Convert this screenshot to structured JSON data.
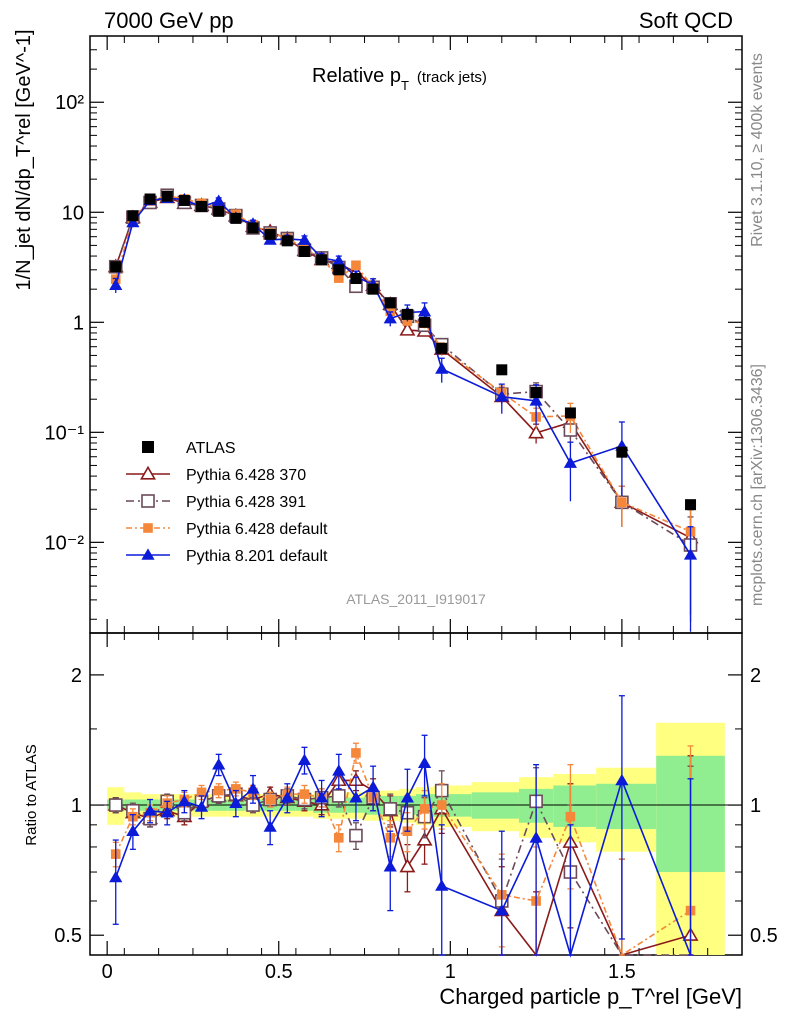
{
  "header": {
    "left": "7000 GeV pp",
    "right": "Soft QCD"
  },
  "side_labels": {
    "rivet": "Rivet 3.1.10, ≥ 400k events",
    "mcplots": "mcplots.cern.ch [arXiv:1306.3436]"
  },
  "main_panel": {
    "title_main": "Relative p",
    "title_sub": "T",
    "title_paren": "(track jets)",
    "analysis_id": "ATLAS_2011_I919017",
    "ylabel": "1/N_jet dN/dp_T^rel [GeV^-1]",
    "y_ticks": [
      "10⁻²",
      "10⁻¹",
      "1",
      "10",
      "10²"
    ]
  },
  "ratio_panel": {
    "ylabel": "Ratio to ATLAS",
    "y_ticks": [
      "0.5",
      "1",
      "2"
    ]
  },
  "x_axis": {
    "label": "Charged particle p_T^rel [GeV]",
    "ticks": [
      "0",
      "0.5",
      "1",
      "1.5"
    ]
  },
  "legend": [
    {
      "label": "ATLAS"
    },
    {
      "label": "Pythia 6.428 370"
    },
    {
      "label": "Pythia 6.428 391"
    },
    {
      "label": "Pythia 6.428 default"
    },
    {
      "label": "Pythia 8.201 default"
    }
  ],
  "chart_data": {
    "type": "scatter",
    "x": [
      0.025,
      0.075,
      0.125,
      0.175,
      0.225,
      0.275,
      0.325,
      0.375,
      0.425,
      0.475,
      0.525,
      0.575,
      0.625,
      0.675,
      0.725,
      0.775,
      0.825,
      0.875,
      0.925,
      0.975,
      1.15,
      1.25,
      1.35,
      1.5,
      1.7
    ],
    "xlim": [
      -0.05,
      1.85
    ],
    "ylim_main": [
      0.0015,
      400
    ],
    "y_scale_main": "log",
    "ylim_ratio": [
      0.45,
      2.5
    ],
    "y_scale_ratio": "log",
    "series": [
      {
        "name": "ATLAS",
        "color": "#000000",
        "marker": "filled-square",
        "values": [
          3.2,
          9.3,
          13.2,
          14.0,
          12.8,
          11.3,
          10.2,
          8.8,
          7.2,
          6.3,
          5.5,
          4.4,
          3.7,
          3.0,
          2.5,
          2.0,
          1.5,
          1.18,
          1.0,
          0.58,
          0.37,
          0.23,
          0.15,
          0.066,
          0.022
        ],
        "band_stat": [
          0.03,
          0.03,
          0.03,
          0.03,
          0.03,
          0.03,
          0.03,
          0.03,
          0.03,
          0.03,
          0.03,
          0.03,
          0.04,
          0.04,
          0.04,
          0.05,
          0.05,
          0.05,
          0.06,
          0.06,
          0.07,
          0.09,
          0.11,
          0.12,
          0.3
        ],
        "band_total": [
          0.1,
          0.07,
          0.06,
          0.06,
          0.06,
          0.06,
          0.06,
          0.06,
          0.06,
          0.06,
          0.06,
          0.06,
          0.07,
          0.07,
          0.07,
          0.08,
          0.08,
          0.09,
          0.1,
          0.11,
          0.13,
          0.16,
          0.18,
          0.22,
          0.55
        ]
      },
      {
        "name": "Pythia 6.428 370",
        "color": "#8b1a1a",
        "marker": "open-triangle",
        "dash": "",
        "ratio": [
          1.0,
          0.96,
          0.93,
          0.97,
          0.94,
          1.02,
          1.05,
          1.05,
          1.03,
          1.06,
          1.04,
          1.02,
          1.0,
          1.14,
          1.14,
          1.08,
          0.97,
          0.72,
          0.83,
          0.98,
          0.57,
          0.43,
          0.82,
          0.35,
          0.5
        ],
        "err": [
          0.04,
          0.04,
          0.04,
          0.04,
          0.04,
          0.04,
          0.04,
          0.04,
          0.04,
          0.04,
          0.04,
          0.05,
          0.05,
          0.06,
          0.06,
          0.07,
          0.08,
          0.09,
          0.1,
          0.12,
          0.15,
          0.2,
          0.3,
          0.4,
          0.8
        ]
      },
      {
        "name": "Pythia 6.428 391",
        "color": "#6b4a5a",
        "marker": "open-square",
        "dash": "8,4,2,4",
        "ratio": [
          1.0,
          0.97,
          0.93,
          1.02,
          0.96,
          1.02,
          1.05,
          1.06,
          1.0,
          1.03,
          1.05,
          1.03,
          1.04,
          1.05,
          0.85,
          1.04,
          0.98,
          0.96,
          0.94,
          1.08,
          0.6,
          1.02,
          0.7,
          0.35,
          0.43
        ],
        "err": [
          0.04,
          0.04,
          0.04,
          0.04,
          0.04,
          0.04,
          0.04,
          0.04,
          0.04,
          0.04,
          0.04,
          0.05,
          0.05,
          0.06,
          0.06,
          0.07,
          0.08,
          0.09,
          0.1,
          0.12,
          0.15,
          0.2,
          0.3,
          0.4,
          0.8
        ]
      },
      {
        "name": "Pythia 6.428 default",
        "color": "#f5873a",
        "marker": "filled-small-square",
        "dash": "6,3,2,3",
        "ratio": [
          0.77,
          0.94,
          0.96,
          1.01,
          1.03,
          1.07,
          1.08,
          1.09,
          1.07,
          1.03,
          1.06,
          1.06,
          1.04,
          0.84,
          1.32,
          1.04,
          0.84,
          0.87,
          0.98,
          1.0,
          0.62,
          0.6,
          0.94,
          0.35,
          0.57
        ],
        "err": [
          0.05,
          0.04,
          0.04,
          0.04,
          0.04,
          0.04,
          0.04,
          0.04,
          0.04,
          0.04,
          0.04,
          0.05,
          0.05,
          0.06,
          0.07,
          0.07,
          0.08,
          0.09,
          0.1,
          0.12,
          0.15,
          0.2,
          0.3,
          0.4,
          0.8
        ]
      },
      {
        "name": "Pythia 8.201 default",
        "color": "#0b1bd8",
        "marker": "filled-triangle",
        "dash": "",
        "ratio": [
          0.68,
          0.87,
          0.97,
          0.96,
          1.02,
          0.99,
          1.24,
          1.01,
          1.09,
          0.89,
          1.04,
          1.27,
          1.04,
          1.2,
          1.04,
          1.1,
          0.72,
          1.04,
          1.25,
          0.65,
          0.57,
          0.84,
          0.35,
          1.14,
          0.35
        ],
        "err": [
          0.15,
          0.08,
          0.06,
          0.06,
          0.06,
          0.06,
          0.07,
          0.07,
          0.08,
          0.08,
          0.08,
          0.09,
          0.1,
          0.11,
          0.12,
          0.13,
          0.15,
          0.17,
          0.2,
          0.25,
          0.3,
          0.4,
          0.55,
          0.65,
          0.8
        ]
      }
    ]
  }
}
